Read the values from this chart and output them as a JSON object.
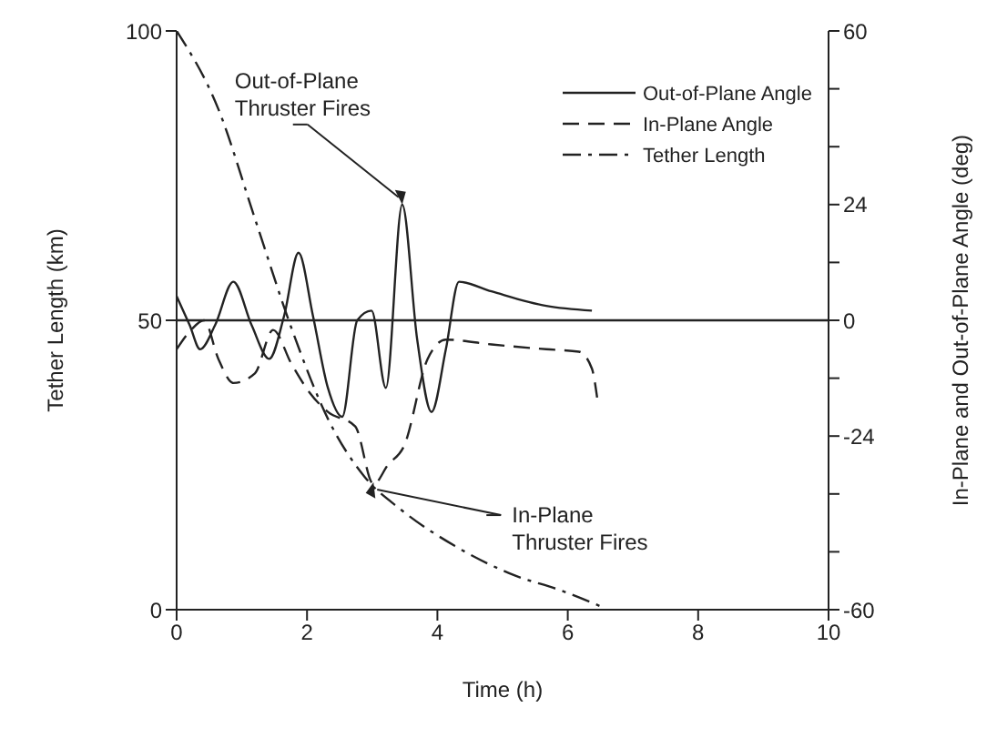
{
  "chart_data": {
    "type": "line",
    "xlabel": "Time (h)",
    "ylabel": "Tether Length (km)",
    "y2label": "In-Plane and Out-of-Plane Angle (deg)",
    "xlim": [
      0,
      10
    ],
    "xticks": [
      0,
      2,
      4,
      6,
      8,
      10
    ],
    "ylim": [
      0,
      100
    ],
    "yticks": [
      0,
      50,
      100
    ],
    "y2lim": [
      -60,
      60
    ],
    "y2ticks": [
      -60,
      {
        "value": -48,
        "label": null
      },
      {
        "value": -36,
        "label": null
      },
      -24,
      {
        "value": -12,
        "label": null
      },
      0,
      {
        "value": 12,
        "label": null
      },
      24,
      {
        "value": 36,
        "label": null
      },
      {
        "value": 48,
        "label": null
      },
      60
    ],
    "legend": "top right",
    "ref_lines": [
      {
        "axis": "y2",
        "value": 0,
        "color": "#222222"
      }
    ],
    "annotations": [
      {
        "text": "Out-of-Plane\nThruster Fires",
        "x": 3.46,
        "y": 70
      },
      {
        "text": "In-Plane\nThruster Fires",
        "x": 3.02,
        "y": 22
      }
    ],
    "series": [
      {
        "name": "Out-of-Plane Angle",
        "color": "#222222",
        "line_style": "solid",
        "axis": "y2",
        "x": [
          0,
          0.2,
          0.36,
          0.59,
          0.87,
          1.15,
          1.42,
          1.65,
          1.87,
          2.09,
          2.32,
          2.54,
          2.77,
          2.99,
          3.21,
          3.46,
          3.69,
          3.91,
          4.13,
          4.33,
          4.83,
          5.67,
          6.37
        ],
        "values": [
          5,
          -1,
          -6,
          -1,
          8,
          -1,
          -8,
          1,
          14,
          1,
          -14,
          -20,
          0,
          2,
          -14,
          24,
          -4,
          -19,
          -6,
          8,
          6,
          3,
          2
        ]
      },
      {
        "name": "In-Plane Angle",
        "color": "#222222",
        "line_style": "dashed",
        "axis": "y2",
        "x": [
          0,
          0.22,
          0.42,
          0.64,
          0.87,
          1.2,
          1.48,
          1.76,
          2.04,
          2.32,
          2.74,
          3.02,
          3.24,
          3.49,
          3.85,
          4.13,
          4.83,
          5.67,
          6.17,
          6.37,
          6.45
        ],
        "values": [
          -6,
          -2,
          0,
          -8,
          -13,
          -11,
          -2,
          -9,
          -15,
          -19,
          -22,
          -34,
          -30,
          -26,
          -8,
          -4,
          -5,
          -6,
          -6.5,
          -10,
          -16
        ]
      },
      {
        "name": "Tether Length",
        "color": "#222222",
        "line_style": "dashdot",
        "x": [
          0,
          0.64,
          1.2,
          1.76,
          2.32,
          2.88,
          3.44,
          4.27,
          5.1,
          5.95,
          6.5
        ],
        "values": [
          100,
          86.5,
          67.6,
          48.7,
          33,
          23,
          17.3,
          11,
          6.3,
          3.1,
          0.6
        ]
      }
    ]
  }
}
